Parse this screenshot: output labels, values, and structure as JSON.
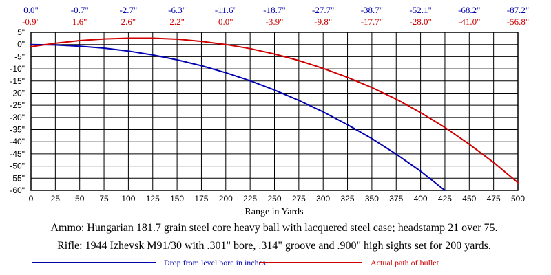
{
  "colors": {
    "drop": "#0000b0",
    "path": "#d00000",
    "grid": "#000000"
  },
  "chart_data": {
    "type": "line",
    "xlabel": "Range in Yards",
    "ylabel": "",
    "xlim": [
      0,
      500
    ],
    "ylim": [
      -60,
      5
    ],
    "x_ticks": [
      "0",
      "25",
      "50",
      "75",
      "100",
      "125",
      "150",
      "175",
      "200",
      "225",
      "250",
      "275",
      "300",
      "325",
      "350",
      "375",
      "400",
      "425",
      "450",
      "475",
      "500"
    ],
    "y_ticks": [
      "5\"",
      "0\"",
      "-5\"",
      "-10\"",
      "-15\"",
      "-20\"",
      "-25\"",
      "-30\"",
      "-35\"",
      "-40\"",
      "-45\"",
      "-50\"",
      "-55\"",
      "-60\""
    ],
    "grid": true,
    "top_drop_labels": [
      "0.0\"",
      "-0.7\"",
      "-2.7\"",
      "-6.3\"",
      "-11.6\"",
      "-18.7\"",
      "-27.7\"",
      "-38.7\"",
      "-52.1\"",
      "-68.2\"",
      "-87.2\""
    ],
    "top_path_labels": [
      "-0.9\"",
      "1.6\"",
      "2.6\"",
      "2.2\"",
      "0.0\"",
      "-3.9\"",
      "-9.8\"",
      "-17.7\"",
      "-28.0\"",
      "-41.0\"",
      "-56.8\""
    ],
    "series": [
      {
        "name": "Drop from level bore in inches",
        "x": [
          0,
          25,
          50,
          75,
          100,
          125,
          150,
          175,
          200,
          225,
          250,
          275,
          300,
          325,
          350,
          375,
          400,
          425
        ],
        "values": [
          0.0,
          -0.2,
          -0.7,
          -1.5,
          -2.7,
          -4.3,
          -6.3,
          -8.7,
          -11.6,
          -14.9,
          -18.7,
          -23.0,
          -27.7,
          -33.0,
          -38.7,
          -45.1,
          -52.1,
          -60.0
        ]
      },
      {
        "name": "Actual path of bullet",
        "x": [
          0,
          25,
          50,
          75,
          100,
          125,
          150,
          175,
          200,
          225,
          250,
          275,
          300,
          325,
          350,
          375,
          400,
          425,
          450,
          475,
          500
        ],
        "values": [
          -0.9,
          0.5,
          1.6,
          2.3,
          2.6,
          2.6,
          2.2,
          1.3,
          0.0,
          -1.7,
          -3.9,
          -6.6,
          -9.8,
          -13.5,
          -17.7,
          -22.5,
          -28.0,
          -34.1,
          -41.0,
          -48.5,
          -56.8
        ]
      }
    ]
  },
  "notes": {
    "ammo": "Ammo:  Hungarian 181.7 grain steel core heavy ball with lacquered steel case; headstamp 21 over 75.",
    "rifle": "Rifle:  1944 Izhevsk M91/30 with .301\" bore, .314\" groove and .900\" high sights set for 200 yards."
  },
  "legend": {
    "drop_label": "Drop from level bore in inches",
    "path_label": "Actual path of bullet"
  }
}
